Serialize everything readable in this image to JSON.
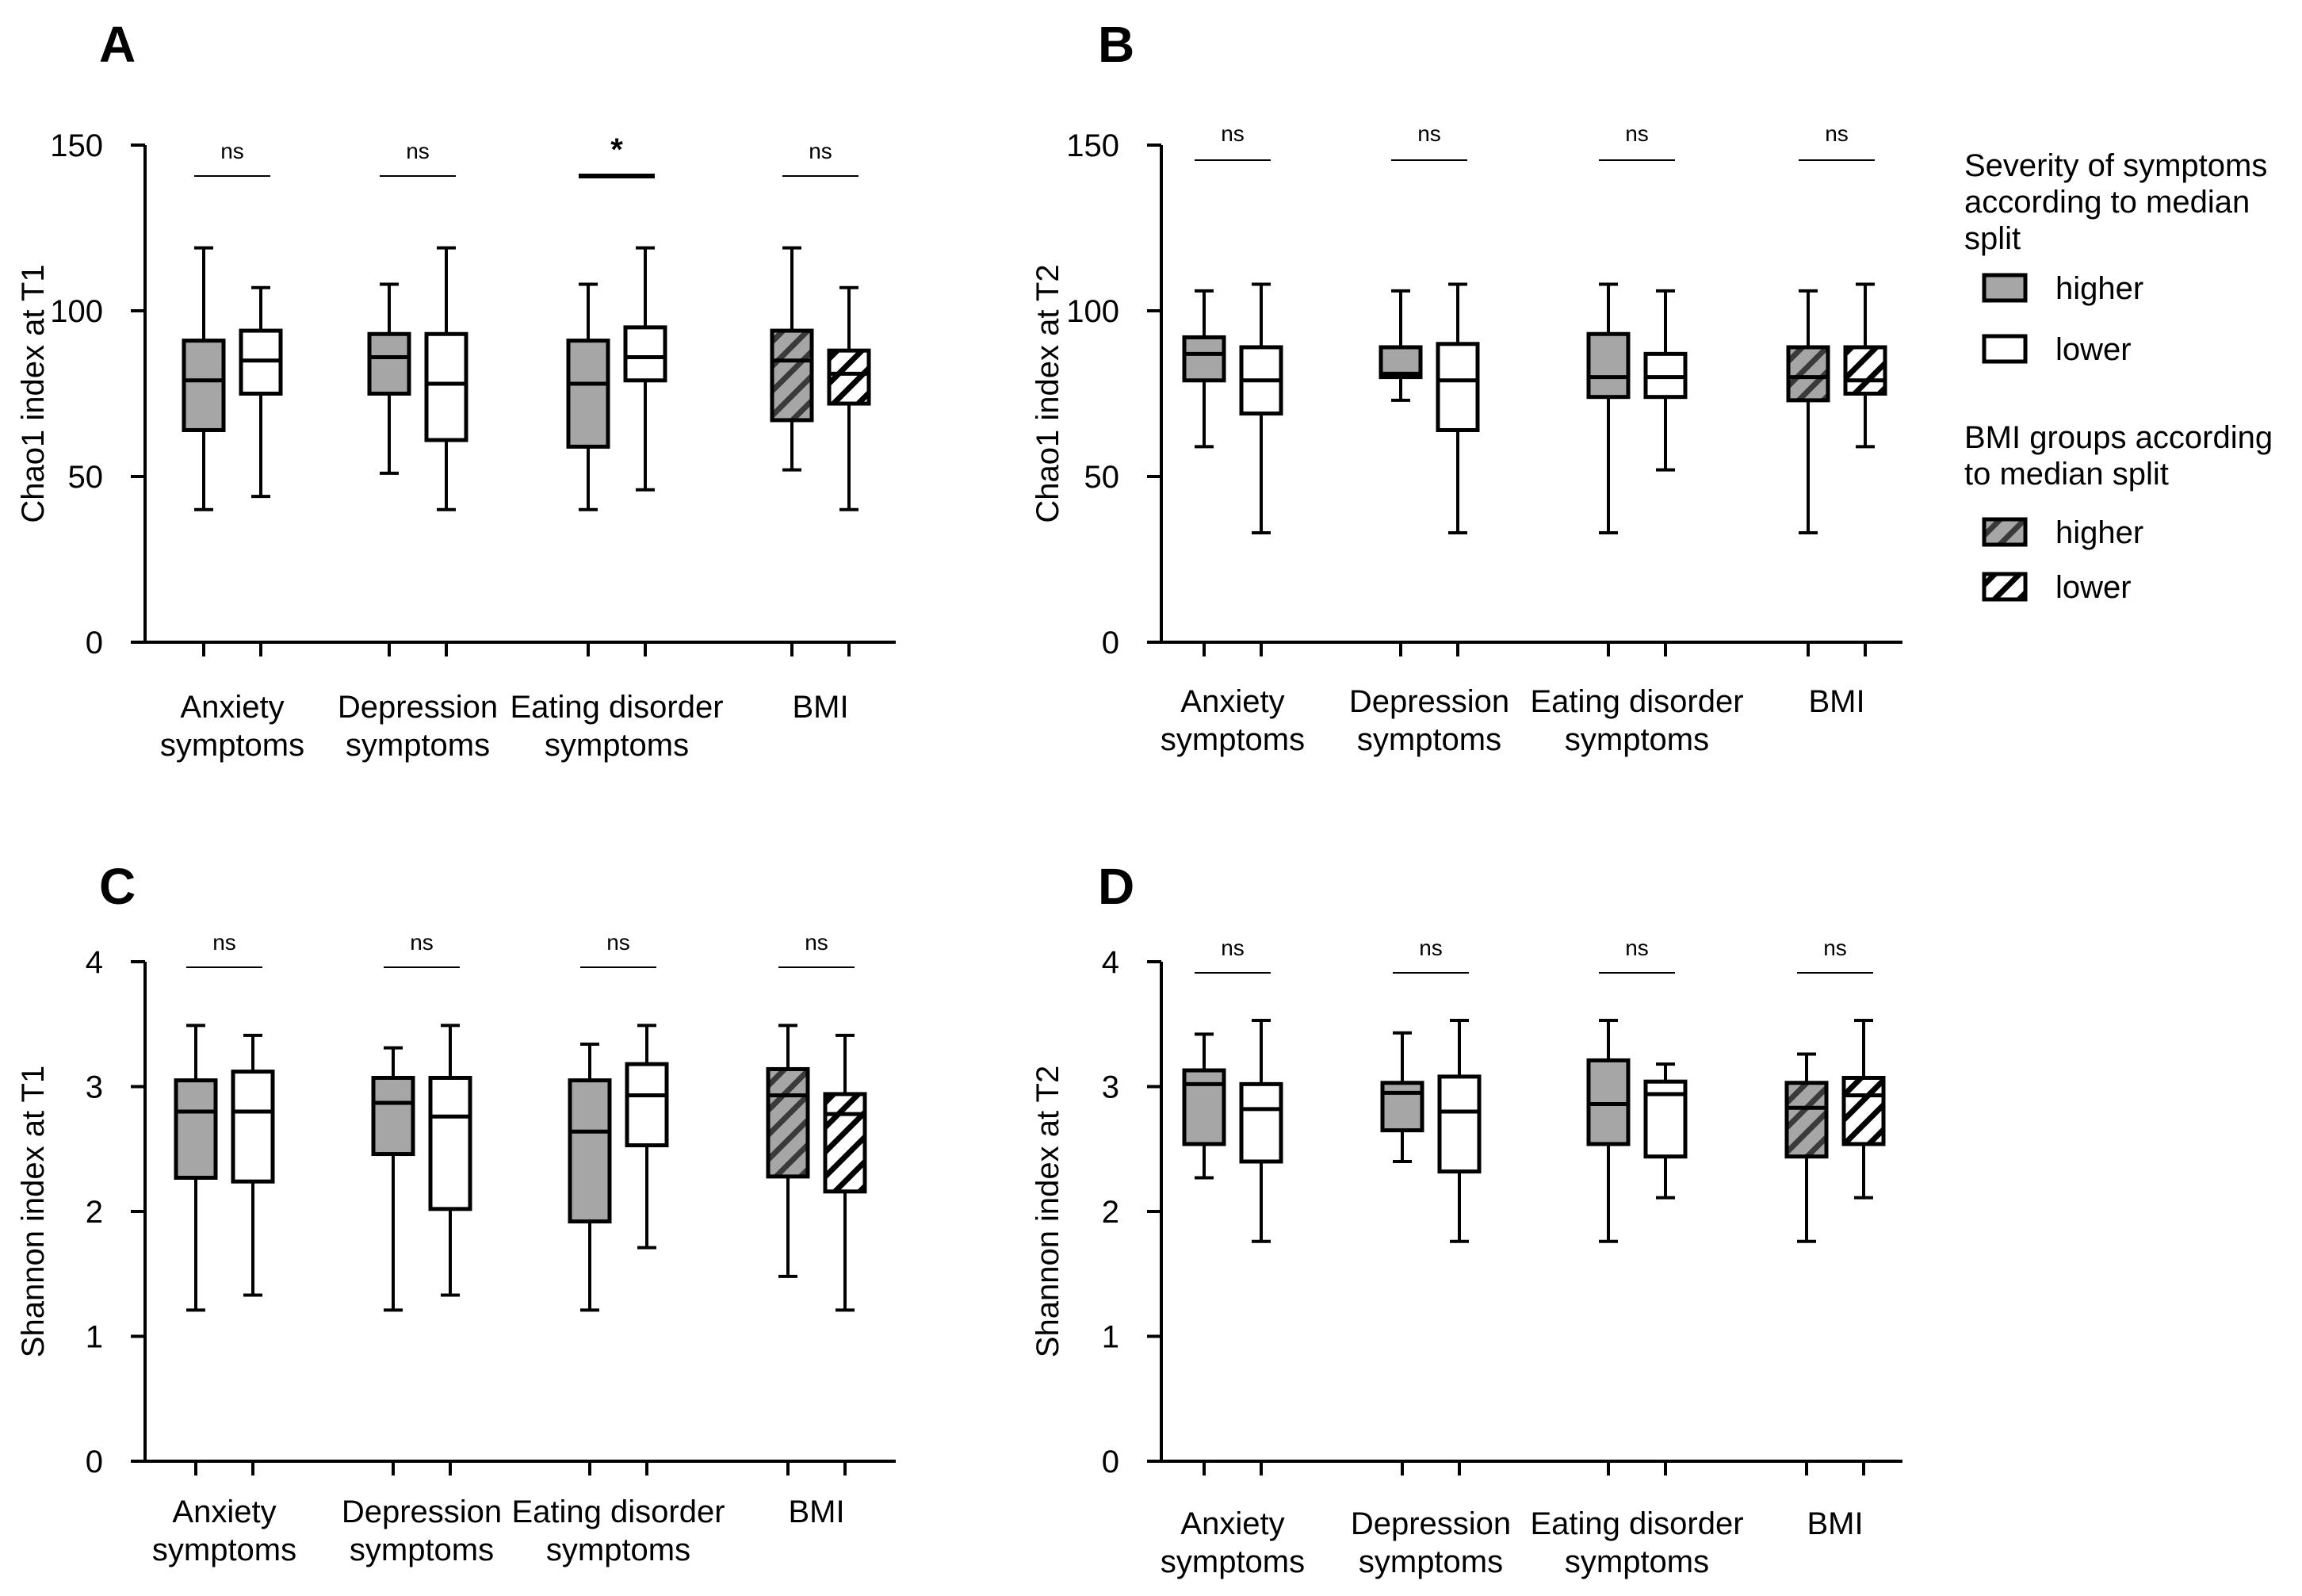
{
  "style": {
    "higher_fill": "#a6a6a6",
    "lower_fill": "#ffffff",
    "stroke": "#000000",
    "background": "#ffffff"
  },
  "legend": {
    "symptoms_title_lines": [
      "Severity of symptoms",
      "according to median",
      "split"
    ],
    "symptoms_items": [
      {
        "label": "higher",
        "fill": "grey",
        "hatch": false
      },
      {
        "label": "lower",
        "fill": "white",
        "hatch": false
      }
    ],
    "bmi_title_lines": [
      "BMI groups according",
      "to median split"
    ],
    "bmi_items": [
      {
        "label": "higher",
        "fill": "grey",
        "hatch": true
      },
      {
        "label": "lower",
        "fill": "white",
        "hatch": true
      }
    ]
  },
  "chart_data": [
    {
      "panel": "A",
      "type": "boxplot",
      "ylabel": "Chao1 index at T1",
      "ylim": [
        0,
        150
      ],
      "yticks": [
        0,
        50,
        100,
        150
      ],
      "groups": [
        {
          "label_lines": [
            "Anxiety",
            "symptoms"
          ],
          "sig": "ns",
          "higher": {
            "min": 40,
            "q1": 64,
            "median": 79,
            "q3": 91,
            "max": 119
          },
          "lower": {
            "min": 44,
            "q1": 75,
            "median": 85,
            "q3": 94,
            "max": 107
          }
        },
        {
          "label_lines": [
            "Depression",
            "symptoms"
          ],
          "sig": "ns",
          "higher": {
            "min": 51,
            "q1": 75,
            "median": 86,
            "q3": 93,
            "max": 108
          },
          "lower": {
            "min": 40,
            "q1": 61,
            "median": 78,
            "q3": 93,
            "max": 119
          }
        },
        {
          "label_lines": [
            "Eating disorder",
            "symptoms"
          ],
          "sig": "*",
          "higher": {
            "min": 40,
            "q1": 59,
            "median": 78,
            "q3": 91,
            "max": 108
          },
          "lower": {
            "min": 46,
            "q1": 79,
            "median": 86,
            "q3": 95,
            "max": 119
          }
        },
        {
          "label_lines": [
            "BMI"
          ],
          "sig": "ns",
          "hatched": true,
          "higher": {
            "min": 52,
            "q1": 67,
            "median": 85,
            "q3": 94,
            "max": 119
          },
          "lower": {
            "min": 40,
            "q1": 72,
            "median": 81,
            "q3": 88,
            "max": 107
          }
        }
      ]
    },
    {
      "panel": "B",
      "type": "boxplot",
      "ylabel": "Chao1 index at T2",
      "ylim": [
        0,
        150
      ],
      "yticks": [
        0,
        50,
        100,
        150
      ],
      "groups": [
        {
          "label_lines": [
            "Anxiety",
            "symptoms"
          ],
          "sig": "ns",
          "higher": {
            "min": 59,
            "q1": 79,
            "median": 87,
            "q3": 92,
            "max": 106
          },
          "lower": {
            "min": 33,
            "q1": 69,
            "median": 79,
            "q3": 89,
            "max": 108
          }
        },
        {
          "label_lines": [
            "Depression",
            "symptoms"
          ],
          "sig": "ns",
          "higher": {
            "min": 73,
            "q1": 80,
            "median": 81,
            "q3": 89,
            "max": 106
          },
          "lower": {
            "min": 33,
            "q1": 64,
            "median": 79,
            "q3": 90,
            "max": 108
          }
        },
        {
          "label_lines": [
            "Eating disorder",
            "symptoms"
          ],
          "sig": "ns",
          "higher": {
            "min": 33,
            "q1": 74,
            "median": 80,
            "q3": 93,
            "max": 108
          },
          "lower": {
            "min": 52,
            "q1": 74,
            "median": 80,
            "q3": 87,
            "max": 106
          }
        },
        {
          "label_lines": [
            "BMI"
          ],
          "sig": "ns",
          "hatched": true,
          "higher": {
            "min": 33,
            "q1": 73,
            "median": 80,
            "q3": 89,
            "max": 106
          },
          "lower": {
            "min": 59,
            "q1": 75,
            "median": 79,
            "q3": 89,
            "max": 108
          }
        }
      ]
    },
    {
      "panel": "C",
      "type": "boxplot",
      "ylabel": "Shannon index at T1",
      "ylim": [
        0,
        4
      ],
      "yticks": [
        0,
        1,
        2,
        3,
        4
      ],
      "groups": [
        {
          "label_lines": [
            "Anxiety",
            "symptoms"
          ],
          "sig": "ns",
          "higher": {
            "min": 1.21,
            "q1": 2.27,
            "median": 2.8,
            "q3": 3.05,
            "max": 3.49
          },
          "lower": {
            "min": 1.33,
            "q1": 2.24,
            "median": 2.8,
            "q3": 3.12,
            "max": 3.41
          }
        },
        {
          "label_lines": [
            "Depression",
            "symptoms"
          ],
          "sig": "ns",
          "higher": {
            "min": 1.21,
            "q1": 2.46,
            "median": 2.87,
            "q3": 3.07,
            "max": 3.31
          },
          "lower": {
            "min": 1.33,
            "q1": 2.02,
            "median": 2.76,
            "q3": 3.07,
            "max": 3.49
          }
        },
        {
          "label_lines": [
            "Eating disorder",
            "symptoms"
          ],
          "sig": "ns",
          "higher": {
            "min": 1.21,
            "q1": 1.92,
            "median": 2.64,
            "q3": 3.05,
            "max": 3.34
          },
          "lower": {
            "min": 1.71,
            "q1": 2.53,
            "median": 2.93,
            "q3": 3.18,
            "max": 3.49
          }
        },
        {
          "label_lines": [
            "BMI"
          ],
          "sig": "ns",
          "hatched": true,
          "higher": {
            "min": 1.48,
            "q1": 2.28,
            "median": 2.93,
            "q3": 3.14,
            "max": 3.49
          },
          "lower": {
            "min": 1.21,
            "q1": 2.16,
            "median": 2.78,
            "q3": 2.94,
            "max": 3.41
          }
        }
      ]
    },
    {
      "panel": "D",
      "type": "boxplot",
      "ylabel": "Shannon index at T2",
      "ylim": [
        0,
        4
      ],
      "yticks": [
        0,
        1,
        2,
        3,
        4
      ],
      "groups": [
        {
          "label_lines": [
            "Anxiety",
            "symptoms"
          ],
          "sig": "ns",
          "higher": {
            "min": 2.27,
            "q1": 2.54,
            "median": 3.02,
            "q3": 3.13,
            "max": 3.42
          },
          "lower": {
            "min": 1.76,
            "q1": 2.4,
            "median": 2.82,
            "q3": 3.02,
            "max": 3.53
          }
        },
        {
          "label_lines": [
            "Depression",
            "symptoms"
          ],
          "sig": "ns",
          "higher": {
            "min": 2.4,
            "q1": 2.65,
            "median": 2.95,
            "q3": 3.03,
            "max": 3.43
          },
          "lower": {
            "min": 1.76,
            "q1": 2.32,
            "median": 2.8,
            "q3": 3.08,
            "max": 3.53
          }
        },
        {
          "label_lines": [
            "Eating disorder",
            "symptoms"
          ],
          "sig": "ns",
          "higher": {
            "min": 1.76,
            "q1": 2.54,
            "median": 2.86,
            "q3": 3.21,
            "max": 3.53
          },
          "lower": {
            "min": 2.11,
            "q1": 2.44,
            "median": 2.94,
            "q3": 3.04,
            "max": 3.18
          }
        },
        {
          "label_lines": [
            "BMI"
          ],
          "sig": "ns",
          "hatched": true,
          "higher": {
            "min": 1.76,
            "q1": 2.44,
            "median": 2.83,
            "q3": 3.03,
            "max": 3.26
          },
          "lower": {
            "min": 2.11,
            "q1": 2.54,
            "median": 2.93,
            "q3": 3.07,
            "max": 3.53
          }
        }
      ]
    }
  ]
}
